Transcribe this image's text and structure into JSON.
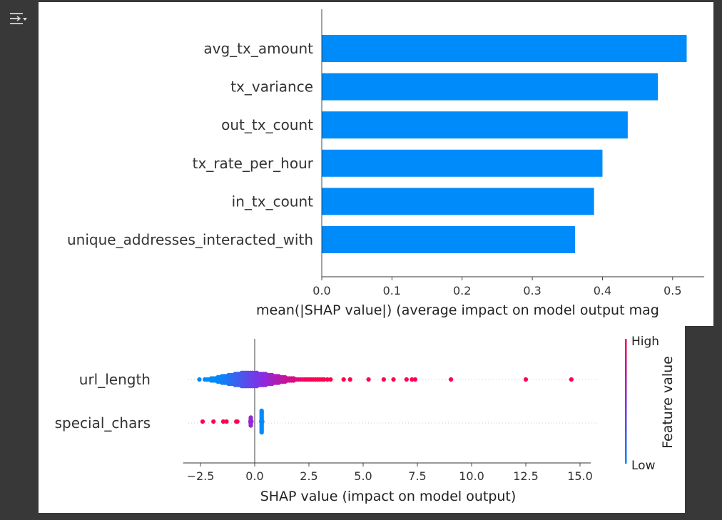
{
  "icons": {
    "output_toggle": "collapse-output-icon"
  },
  "chart_data": [
    {
      "type": "bar",
      "orientation": "horizontal",
      "categories": [
        "avg_tx_amount",
        "tx_variance",
        "out_tx_count",
        "tx_rate_per_hour",
        "in_tx_count",
        "unique_addresses_interacted_with"
      ],
      "values": [
        0.52,
        0.479,
        0.436,
        0.4,
        0.388,
        0.361
      ],
      "xlabel": "mean(|SHAP value|) (average impact on model output mag",
      "xlim": [
        0,
        0.545
      ],
      "xticks": [
        0.0,
        0.1,
        0.2,
        0.3,
        0.4,
        0.5
      ],
      "xtick_labels": [
        "0.0",
        "0.1",
        "0.2",
        "0.3",
        "0.4",
        "0.5"
      ],
      "bar_color": "#008bfb",
      "grid": false
    },
    {
      "type": "scatter",
      "subtype": "beeswarm",
      "features": [
        "url_length",
        "special_chars"
      ],
      "xlabel": "SHAP value (impact on model output)",
      "xlim": [
        -3.3,
        15.5
      ],
      "xticks": [
        -2.5,
        0.0,
        2.5,
        5.0,
        7.5,
        10.0,
        12.5,
        15.0
      ],
      "xtick_labels": [
        "−2.5",
        "0.0",
        "2.5",
        "5.0",
        "7.5",
        "10.0",
        "12.5",
        "15.0"
      ],
      "colorbar": {
        "label": "Feature value",
        "high_label": "High",
        "low_label": "Low",
        "low_color": "#008bfb",
        "high_color": "#ff0052"
      },
      "series": [
        {
          "name": "url_length",
          "points": [
            [
              -2.55,
              0.0
            ],
            [
              -2.3,
              0.1
            ],
            [
              -2.2,
              0.15
            ],
            [
              -2.1,
              0.2
            ],
            [
              -2.0,
              0.25
            ],
            [
              -1.9,
              0.3
            ],
            [
              -1.8,
              0.35
            ],
            [
              -1.7,
              0.4
            ],
            [
              -1.6,
              0.45
            ],
            [
              -1.5,
              0.5
            ],
            [
              -1.4,
              0.55
            ],
            [
              -1.3,
              0.6
            ],
            [
              -1.2,
              0.65
            ],
            [
              -1.1,
              0.7
            ],
            [
              -1.0,
              0.75
            ],
            [
              -0.9,
              0.8
            ],
            [
              -0.8,
              0.85
            ],
            [
              -0.7,
              0.9
            ],
            [
              -0.6,
              0.95
            ],
            [
              -0.5,
              1.0
            ],
            [
              -0.4,
              1.0
            ],
            [
              -0.3,
              1.0
            ],
            [
              -0.2,
              1.0
            ],
            [
              -0.1,
              1.0
            ],
            [
              0.0,
              1.0
            ],
            [
              0.1,
              0.95
            ],
            [
              0.2,
              0.92
            ],
            [
              0.3,
              0.88
            ],
            [
              0.4,
              0.85
            ],
            [
              0.5,
              0.8
            ],
            [
              0.6,
              0.75
            ],
            [
              0.7,
              0.7
            ],
            [
              0.8,
              0.65
            ],
            [
              0.9,
              0.6
            ],
            [
              1.0,
              0.55
            ],
            [
              1.1,
              0.5
            ],
            [
              1.2,
              0.45
            ],
            [
              1.3,
              0.4
            ],
            [
              1.4,
              0.36
            ],
            [
              1.5,
              0.32
            ],
            [
              1.6,
              0.28
            ],
            [
              1.7,
              0.25
            ],
            [
              1.8,
              0.22
            ],
            [
              1.9,
              0.2
            ],
            [
              2.0,
              0.18
            ],
            [
              2.1,
              0.16
            ],
            [
              2.2,
              0.14
            ],
            [
              2.3,
              0.12
            ],
            [
              2.4,
              0.1
            ],
            [
              2.5,
              0.08
            ],
            [
              2.6,
              0.06
            ],
            [
              2.7,
              0.05
            ],
            [
              2.8,
              0.04
            ],
            [
              2.9,
              0.03
            ],
            [
              3.0,
              0.02
            ],
            [
              3.1,
              0.02
            ],
            [
              3.2,
              0.01
            ],
            [
              3.35,
              0.0
            ],
            [
              3.5,
              0.0
            ],
            [
              4.1,
              0
            ],
            [
              4.4,
              0
            ],
            [
              5.25,
              0
            ],
            [
              5.95,
              0
            ],
            [
              6.4,
              0
            ],
            [
              7.0,
              0
            ],
            [
              7.25,
              0
            ],
            [
              7.4,
              0
            ],
            [
              9.05,
              0
            ],
            [
              12.5,
              0
            ],
            [
              14.6,
              0
            ]
          ]
        },
        {
          "name": "special_chars",
          "points": [
            [
              -2.4,
              0
            ],
            [
              -1.9,
              0
            ],
            [
              -1.45,
              0
            ],
            [
              -1.3,
              0
            ],
            [
              -0.85,
              0
            ],
            [
              -0.8,
              0
            ],
            [
              -0.2,
              0
            ],
            [
              -0.15,
              0
            ],
            [
              0.3,
              0
            ],
            [
              0.35,
              0
            ]
          ]
        }
      ]
    }
  ]
}
